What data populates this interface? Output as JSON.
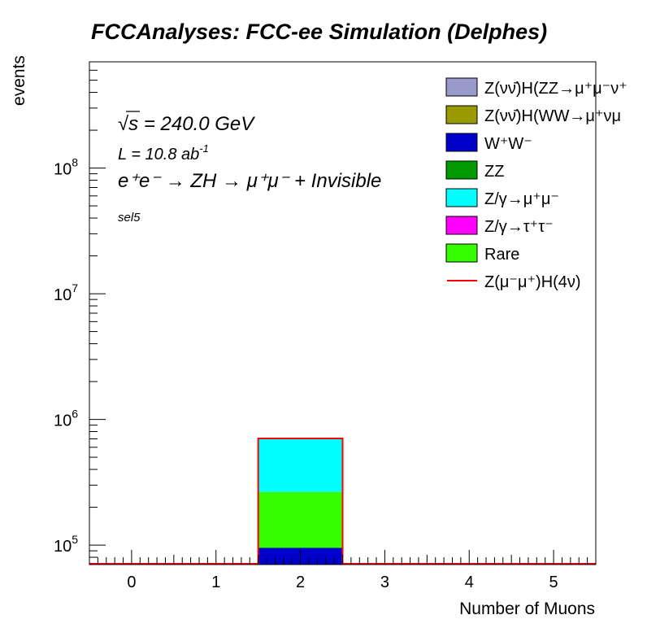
{
  "chart_data": {
    "type": "bar",
    "title": "FCCAnalyses: FCC-ee Simulation (Delphes)",
    "xlabel": "Number of Muons",
    "ylabel": "events",
    "xlim": [
      -0.5,
      5.5
    ],
    "ylim": [
      70000,
      700000000
    ],
    "log_y": true,
    "grid": false,
    "legend_position": "top-right",
    "x_ticks": [
      "0",
      "1",
      "2",
      "3",
      "4",
      "5"
    ],
    "y_ticks": [
      {
        "base": "10",
        "exp": "5",
        "value": 100000
      },
      {
        "base": "10",
        "exp": "6",
        "value": 1000000
      },
      {
        "base": "10",
        "exp": "7",
        "value": 10000000
      },
      {
        "base": "10",
        "exp": "8",
        "value": 100000000
      }
    ],
    "annotations": {
      "energy": "√s = 240.0 GeV",
      "lumi": "L = 10.8 ab",
      "lumi_exp": "-1",
      "process": "e⁺e⁻ → ZH → μ⁺μ⁻ + Invisible",
      "selection": "sel5"
    },
    "series": [
      {
        "name": "W⁺W⁻",
        "color": "#0000cc",
        "edges": [
          1.5,
          2.5
        ],
        "values": [
          95000
        ]
      },
      {
        "name": "Rare",
        "color": "#33ff00",
        "edges": [
          1.5,
          2.5
        ],
        "values": [
          170000
        ]
      },
      {
        "name": "Z/γ→μ⁺μ⁻",
        "color": "#00ffff",
        "edges": [
          1.5,
          2.5
        ],
        "values": [
          440000
        ]
      },
      {
        "name": "Z(μ⁻μ⁺)H(4ν)",
        "color": "#ff0000",
        "type": "line",
        "note_value": "bin 2 total ≈ 705000",
        "edges": [
          -0.5,
          5.5
        ],
        "values": [
          0
        ]
      }
    ],
    "legend": [
      {
        "label": "Z(νν̄)H(ZZ→μ⁺μ⁻ν⁺",
        "color": "#9999cc",
        "style": "fill"
      },
      {
        "label": "Z(νν̄)H(WW→μ⁺νμ",
        "color": "#999900",
        "style": "fill"
      },
      {
        "label": "W⁺W⁻",
        "color": "#0000cc",
        "style": "fill"
      },
      {
        "label": "ZZ",
        "color": "#009900",
        "style": "fill"
      },
      {
        "label": "Z/γ→μ⁺μ⁻",
        "color": "#00ffff",
        "style": "fill"
      },
      {
        "label": "Z/γ→τ⁺τ⁻",
        "color": "#ff00ff",
        "style": "fill"
      },
      {
        "label": "Rare",
        "color": "#33ff00",
        "style": "fill"
      },
      {
        "label": "Z(μ⁻μ⁺)H(4ν)",
        "color": "#ff0000",
        "style": "line"
      }
    ]
  }
}
